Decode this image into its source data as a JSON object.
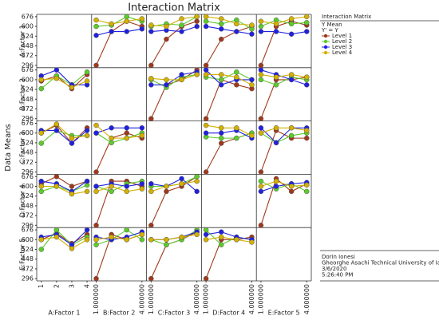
{
  "chart_data": {
    "type": "line",
    "title": "Interaction Matrix",
    "ylabel": "Data Means",
    "legend": {
      "title": "Interaction Matrix",
      "lines": [
        "Y Mean",
        "Y' = Y"
      ]
    },
    "footer": [
      "Dorin Ionesi",
      "Gheorghe Asachi Technical University of Ia",
      "3/6/2020",
      "5:26:40 PM"
    ],
    "levels": [
      {
        "name": "Level 1",
        "color": "#a0381c"
      },
      {
        "name": "Level 2",
        "color": "#5ccc2a"
      },
      {
        "name": "Level 3",
        "color": "#2020e0"
      },
      {
        "name": "Level 4",
        "color": "#d4b000"
      }
    ],
    "x": [
      1,
      2,
      3,
      4
    ],
    "xlim": [
      0.7,
      4.3
    ],
    "ylim": [
      278,
      694
    ],
    "yticks": [
      296,
      372,
      448,
      524,
      600,
      676
    ],
    "factors": [
      {
        "name": "A:Factor 1",
        "xticks": [
          1,
          2,
          3,
          4
        ]
      },
      {
        "name": "B:Factor 2",
        "xticks": [
          {
            "value": 1,
            "label": "1.000000"
          },
          {
            "value": 4,
            "label": "4.000000"
          }
        ]
      },
      {
        "name": "C:Factor 3",
        "xticks": [
          {
            "value": 1,
            "label": "1.000000"
          },
          {
            "value": 4,
            "label": "4.000000"
          }
        ]
      },
      {
        "name": "D:Factor 4",
        "xticks": [
          {
            "value": 1,
            "label": "1.000000"
          },
          {
            "value": 4,
            "label": "4.000000"
          }
        ]
      },
      {
        "name": "E:Factor 5",
        "xticks": [
          {
            "value": 1,
            "label": "1.000000"
          },
          {
            "value": 4,
            "label": "4.000000"
          }
        ]
      }
    ],
    "cells": [
      {
        "row": 0,
        "col": 1,
        "series": [
          [
            296,
            560,
            640,
            600
          ],
          [
            600,
            610,
            676,
            640
          ],
          [
            530,
            560,
            560,
            580
          ],
          [
            650,
            620,
            640,
            660
          ]
        ]
      },
      {
        "row": 0,
        "col": 2,
        "series": [
          [
            296,
            500,
            600,
            640
          ],
          [
            600,
            620,
            610,
            676
          ],
          [
            560,
            570,
            560,
            600
          ],
          [
            610,
            600,
            660,
            676
          ]
        ]
      },
      {
        "row": 0,
        "col": 3,
        "series": [
          [
            296,
            500,
            560,
            600
          ],
          [
            640,
            620,
            650,
            580
          ],
          [
            600,
            580,
            560,
            540
          ],
          [
            676,
            660,
            620,
            610
          ]
        ]
      },
      {
        "row": 0,
        "col": 4,
        "series": [
          [
            296,
            600,
            640,
            610
          ],
          [
            600,
            650,
            620,
            630
          ],
          [
            560,
            560,
            540,
            560
          ],
          [
            640,
            620,
            660,
            676
          ]
        ]
      },
      {
        "row": 1,
        "col": 0,
        "series": [
          [
            590,
            630,
            530,
            640
          ],
          [
            530,
            630,
            560,
            660
          ],
          [
            630,
            676,
            560,
            560
          ],
          [
            600,
            610,
            540,
            590
          ]
        ]
      },
      {
        "row": 1,
        "col": 2,
        "series": [
          [
            296,
            560,
            600,
            676
          ],
          [
            600,
            540,
            620,
            640
          ],
          [
            560,
            560,
            640,
            660
          ],
          [
            610,
            600,
            600,
            640
          ]
        ]
      },
      {
        "row": 1,
        "col": 3,
        "series": [
          [
            296,
            600,
            560,
            530
          ],
          [
            620,
            600,
            660,
            600
          ],
          [
            676,
            560,
            600,
            600
          ],
          [
            640,
            640,
            620,
            560
          ]
        ]
      },
      {
        "row": 1,
        "col": 4,
        "series": [
          [
            296,
            600,
            600,
            620
          ],
          [
            600,
            560,
            620,
            600
          ],
          [
            676,
            640,
            600,
            560
          ],
          [
            640,
            620,
            640,
            620
          ]
        ]
      },
      {
        "row": 2,
        "col": 0,
        "series": [
          [
            600,
            660,
            520,
            640
          ],
          [
            520,
            620,
            580,
            580
          ],
          [
            620,
            620,
            520,
            620
          ],
          [
            600,
            670,
            560,
            580
          ]
        ]
      },
      {
        "row": 2,
        "col": 1,
        "series": [
          [
            296,
            560,
            600,
            560
          ],
          [
            600,
            524,
            560,
            600
          ],
          [
            600,
            640,
            640,
            640
          ],
          [
            660,
            560,
            560,
            580
          ]
        ]
      },
      {
        "row": 2,
        "col": 3,
        "series": [
          [
            296,
            520,
            560,
            600
          ],
          [
            570,
            560,
            560,
            600
          ],
          [
            600,
            600,
            620,
            560
          ],
          [
            660,
            640,
            640,
            580
          ]
        ]
      },
      {
        "row": 2,
        "col": 4,
        "series": [
          [
            296,
            620,
            560,
            560
          ],
          [
            600,
            524,
            580,
            600
          ],
          [
            640,
            524,
            640,
            640
          ],
          [
            600,
            640,
            640,
            620
          ]
        ]
      },
      {
        "row": 3,
        "col": 0,
        "series": [
          [
            620,
            676,
            600,
            640
          ],
          [
            560,
            600,
            560,
            610
          ],
          [
            640,
            620,
            560,
            640
          ],
          [
            600,
            600,
            540,
            560
          ]
        ]
      },
      {
        "row": 3,
        "col": 1,
        "series": [
          [
            296,
            640,
            640,
            600
          ],
          [
            600,
            560,
            620,
            640
          ],
          [
            600,
            620,
            600,
            620
          ],
          [
            560,
            600,
            560,
            580
          ]
        ]
      },
      {
        "row": 3,
        "col": 2,
        "series": [
          [
            296,
            560,
            600,
            676
          ],
          [
            600,
            600,
            620,
            676
          ],
          [
            620,
            600,
            660,
            560
          ],
          [
            560,
            600,
            620,
            640
          ]
        ]
      },
      {
        "row": 3,
        "col": 4,
        "series": [
          [
            296,
            660,
            560,
            620
          ],
          [
            640,
            580,
            620,
            560
          ],
          [
            560,
            600,
            620,
            630
          ],
          [
            600,
            640,
            600,
            610
          ]
        ]
      },
      {
        "row": 4,
        "col": 0,
        "series": [
          [
            600,
            650,
            570,
            640
          ],
          [
            524,
            676,
            560,
            620
          ],
          [
            620,
            640,
            560,
            676
          ],
          [
            600,
            620,
            530,
            600
          ]
        ]
      },
      {
        "row": 4,
        "col": 1,
        "series": [
          [
            296,
            640,
            600,
            640
          ],
          [
            560,
            600,
            676,
            600
          ],
          [
            620,
            600,
            620,
            660
          ],
          [
            600,
            620,
            600,
            640
          ]
        ]
      },
      {
        "row": 4,
        "col": 2,
        "series": [
          [
            296,
            560,
            600,
            660
          ],
          [
            600,
            560,
            600,
            676
          ],
          [
            600,
            600,
            620,
            660
          ],
          [
            600,
            600,
            620,
            640
          ]
        ]
      },
      {
        "row": 4,
        "col": 3,
        "series": [
          [
            296,
            600,
            600,
            620
          ],
          [
            676,
            560,
            620,
            600
          ],
          [
            640,
            660,
            620,
            600
          ],
          [
            600,
            620,
            600,
            580
          ]
        ]
      }
    ]
  }
}
